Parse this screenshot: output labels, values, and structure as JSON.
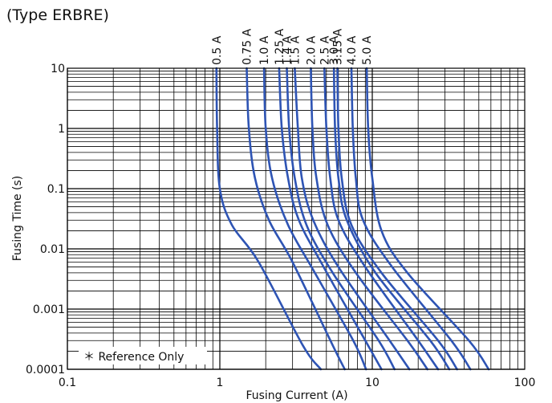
{
  "title": "(Type ERBRE)",
  "note": "＊ Reference Only",
  "chart_data": {
    "type": "line",
    "title": "(Type ERBRE)",
    "xlabel": "Fusing Current (A)",
    "ylabel": "Fusing Time (s)",
    "xscale": "log",
    "yscale": "log",
    "xlim": [
      0.1,
      100
    ],
    "ylim": [
      0.0001,
      10
    ],
    "x_ticks": [
      "0.1",
      "1",
      "10",
      "100"
    ],
    "y_ticks": [
      "0.0001",
      "0.001",
      "0.01",
      "0.1",
      "1",
      "10"
    ],
    "grid": true,
    "series": [
      {
        "name": "0.5 A",
        "points": [
          [
            0.95,
            10
          ],
          [
            0.96,
            1
          ],
          [
            1.0,
            0.1
          ],
          [
            1.2,
            0.025
          ],
          [
            1.8,
            0.006
          ],
          [
            3.5,
            0.00025
          ],
          [
            4.6,
            0.0001
          ]
        ]
      },
      {
        "name": "0.75 A",
        "points": [
          [
            1.5,
            10
          ],
          [
            1.55,
            1
          ],
          [
            1.7,
            0.15
          ],
          [
            2.1,
            0.03
          ],
          [
            3.0,
            0.006
          ],
          [
            5.5,
            0.00025
          ],
          [
            6.6,
            0.0001
          ]
        ]
      },
      {
        "name": "1.0 A",
        "points": [
          [
            1.95,
            10
          ],
          [
            2.0,
            1
          ],
          [
            2.2,
            0.15
          ],
          [
            2.8,
            0.025
          ],
          [
            4.2,
            0.004
          ],
          [
            7.5,
            0.0003
          ],
          [
            9.1,
            0.0001
          ]
        ]
      },
      {
        "name": "1.25 A",
        "points": [
          [
            2.45,
            10
          ],
          [
            2.55,
            1
          ],
          [
            2.8,
            0.15
          ],
          [
            3.3,
            0.03
          ],
          [
            4.8,
            0.005
          ],
          [
            9.0,
            0.0003
          ],
          [
            11.5,
            0.0001
          ]
        ]
      },
      {
        "name": "1.4 A",
        "points": [
          [
            2.75,
            10
          ],
          [
            2.85,
            1
          ],
          [
            3.1,
            0.15
          ],
          [
            3.7,
            0.025
          ],
          [
            5.5,
            0.004
          ],
          [
            11.0,
            0.0003
          ],
          [
            14.0,
            0.0001
          ]
        ]
      },
      {
        "name": "1.5 A",
        "points": [
          [
            3.1,
            10
          ],
          [
            3.25,
            1
          ],
          [
            3.45,
            0.15
          ],
          [
            4.1,
            0.03
          ],
          [
            6.0,
            0.005
          ],
          [
            13.0,
            0.0003
          ],
          [
            17.5,
            0.0001
          ]
        ]
      },
      {
        "name": "2.0 A",
        "points": [
          [
            3.95,
            10
          ],
          [
            4.05,
            1
          ],
          [
            4.3,
            0.15
          ],
          [
            5.1,
            0.025
          ],
          [
            7.8,
            0.004
          ],
          [
            17.0,
            0.0003
          ],
          [
            23.0,
            0.0001
          ]
        ]
      },
      {
        "name": "2.5 A",
        "points": [
          [
            4.85,
            10
          ],
          [
            5.0,
            1
          ],
          [
            5.3,
            0.15
          ],
          [
            6.0,
            0.03
          ],
          [
            9.0,
            0.005
          ],
          [
            20.0,
            0.0003
          ],
          [
            27.0,
            0.0001
          ]
        ]
      },
      {
        "name": "3.0 A",
        "points": [
          [
            5.6,
            10
          ],
          [
            5.7,
            1
          ],
          [
            6.0,
            0.15
          ],
          [
            6.8,
            0.03
          ],
          [
            10.5,
            0.004
          ],
          [
            24.0,
            0.0003
          ],
          [
            32.0,
            0.0001
          ]
        ]
      },
      {
        "name": "3.15 A",
        "points": [
          [
            5.9,
            10
          ],
          [
            6.0,
            1
          ],
          [
            6.3,
            0.15
          ],
          [
            7.3,
            0.025
          ],
          [
            11.5,
            0.004
          ],
          [
            27.0,
            0.0003
          ],
          [
            36.0,
            0.0001
          ]
        ]
      },
      {
        "name": "4.0 A",
        "points": [
          [
            7.3,
            10
          ],
          [
            7.45,
            1
          ],
          [
            7.8,
            0.15
          ],
          [
            8.7,
            0.03
          ],
          [
            13.5,
            0.005
          ],
          [
            33.0,
            0.0003
          ],
          [
            44.0,
            0.0001
          ]
        ]
      },
      {
        "name": "5.0 A",
        "points": [
          [
            9.2,
            10
          ],
          [
            9.4,
            1
          ],
          [
            10.0,
            0.15
          ],
          [
            11.5,
            0.02
          ],
          [
            17.0,
            0.004
          ],
          [
            43.0,
            0.0003
          ],
          [
            58.0,
            0.0001
          ]
        ]
      }
    ]
  }
}
